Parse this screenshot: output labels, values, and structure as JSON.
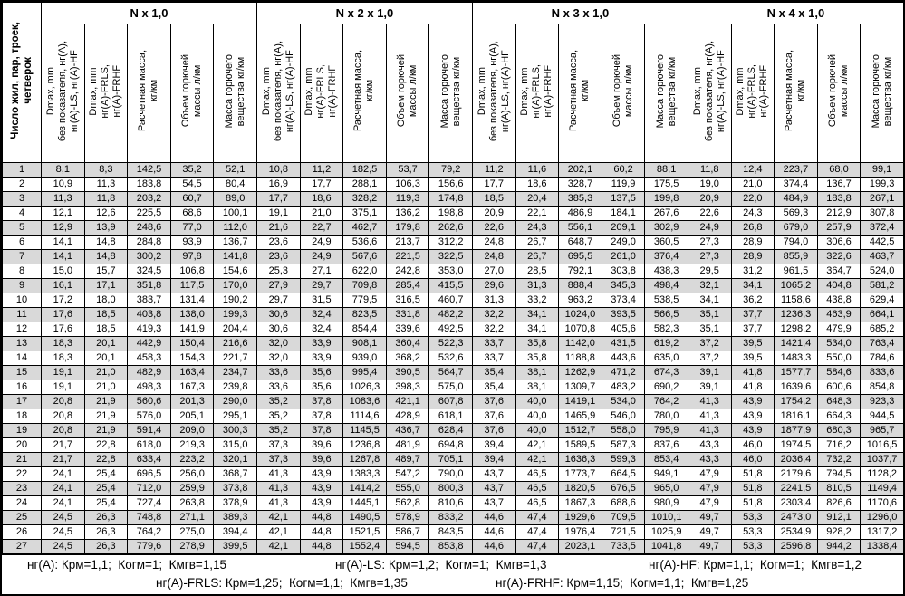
{
  "table": {
    "row_count_label": "Число жил, пар, троек,\nчетверок",
    "groups": [
      "N x 1,0",
      "N x 2 x 1,0",
      "N x 3 x 1,0",
      "N x 4 x 1,0"
    ],
    "column_labels": [
      "Dmax, mm\nбез показателя, нг(А),\nнг(А)-LS, нг(А)-HF",
      "Dmax, mm\nнг(А)-FRLS,\nнг(А)-FRHF",
      "Расчетная масса,\nкг/км",
      "Объем горючей\nмассы л/км",
      "Масса горючего\nвещества кг/км"
    ],
    "rows": [
      {
        "n": "1",
        "v": [
          "8,1",
          "8,3",
          "142,5",
          "35,2",
          "52,1",
          "10,8",
          "11,2",
          "182,5",
          "53,7",
          "79,2",
          "11,2",
          "11,6",
          "202,1",
          "60,2",
          "88,1",
          "11,8",
          "12,4",
          "223,7",
          "68,0",
          "99,1"
        ]
      },
      {
        "n": "2",
        "v": [
          "10,9",
          "11,3",
          "183,8",
          "54,5",
          "80,4",
          "16,9",
          "17,7",
          "288,1",
          "106,3",
          "156,6",
          "17,7",
          "18,6",
          "328,7",
          "119,9",
          "175,5",
          "19,0",
          "21,0",
          "374,4",
          "136,7",
          "199,3"
        ]
      },
      {
        "n": "3",
        "v": [
          "11,3",
          "11,8",
          "203,2",
          "60,7",
          "89,0",
          "17,7",
          "18,6",
          "328,2",
          "119,3",
          "174,8",
          "18,5",
          "20,4",
          "385,3",
          "137,5",
          "199,8",
          "20,9",
          "22,0",
          "484,9",
          "183,8",
          "267,1"
        ]
      },
      {
        "n": "4",
        "v": [
          "12,1",
          "12,6",
          "225,5",
          "68,6",
          "100,1",
          "19,1",
          "21,0",
          "375,1",
          "136,2",
          "198,8",
          "20,9",
          "22,1",
          "486,9",
          "184,1",
          "267,6",
          "22,6",
          "24,3",
          "569,3",
          "212,9",
          "307,8"
        ]
      },
      {
        "n": "5",
        "v": [
          "12,9",
          "13,9",
          "248,6",
          "77,0",
          "112,0",
          "21,6",
          "22,7",
          "462,7",
          "179,8",
          "262,6",
          "22,6",
          "24,3",
          "556,1",
          "209,1",
          "302,9",
          "24,9",
          "26,8",
          "679,0",
          "257,9",
          "372,4"
        ]
      },
      {
        "n": "6",
        "v": [
          "14,1",
          "14,8",
          "284,8",
          "93,9",
          "136,7",
          "23,6",
          "24,9",
          "536,6",
          "213,7",
          "312,2",
          "24,8",
          "26,7",
          "648,7",
          "249,0",
          "360,5",
          "27,3",
          "28,9",
          "794,0",
          "306,6",
          "442,5"
        ]
      },
      {
        "n": "7",
        "v": [
          "14,1",
          "14,8",
          "300,2",
          "97,8",
          "141,8",
          "23,6",
          "24,9",
          "567,6",
          "221,5",
          "322,5",
          "24,8",
          "26,7",
          "695,5",
          "261,0",
          "376,4",
          "27,3",
          "28,9",
          "855,9",
          "322,6",
          "463,7"
        ]
      },
      {
        "n": "8",
        "v": [
          "15,0",
          "15,7",
          "324,5",
          "106,8",
          "154,6",
          "25,3",
          "27,1",
          "622,0",
          "242,8",
          "353,0",
          "27,0",
          "28,5",
          "792,1",
          "303,8",
          "438,3",
          "29,5",
          "31,2",
          "961,5",
          "364,7",
          "524,0"
        ]
      },
      {
        "n": "9",
        "v": [
          "16,1",
          "17,1",
          "351,8",
          "117,5",
          "170,0",
          "27,9",
          "29,7",
          "709,8",
          "285,4",
          "415,5",
          "29,6",
          "31,3",
          "888,4",
          "345,3",
          "498,4",
          "32,1",
          "34,1",
          "1065,2",
          "404,8",
          "581,2"
        ]
      },
      {
        "n": "10",
        "v": [
          "17,2",
          "18,0",
          "383,7",
          "131,4",
          "190,2",
          "29,7",
          "31,5",
          "779,5",
          "316,5",
          "460,7",
          "31,3",
          "33,2",
          "963,2",
          "373,4",
          "538,5",
          "34,1",
          "36,2",
          "1158,6",
          "438,8",
          "629,4"
        ]
      },
      {
        "n": "11",
        "v": [
          "17,6",
          "18,5",
          "403,8",
          "138,0",
          "199,3",
          "30,6",
          "32,4",
          "823,5",
          "331,8",
          "482,2",
          "32,2",
          "34,1",
          "1024,0",
          "393,5",
          "566,5",
          "35,1",
          "37,7",
          "1236,3",
          "463,9",
          "664,1"
        ]
      },
      {
        "n": "12",
        "v": [
          "17,6",
          "18,5",
          "419,3",
          "141,9",
          "204,4",
          "30,6",
          "32,4",
          "854,4",
          "339,6",
          "492,5",
          "32,2",
          "34,1",
          "1070,8",
          "405,6",
          "582,3",
          "35,1",
          "37,7",
          "1298,2",
          "479,9",
          "685,2"
        ]
      },
      {
        "n": "13",
        "v": [
          "18,3",
          "20,1",
          "442,9",
          "150,4",
          "216,6",
          "32,0",
          "33,9",
          "908,1",
          "360,4",
          "522,3",
          "33,7",
          "35,8",
          "1142,0",
          "431,5",
          "619,2",
          "37,2",
          "39,5",
          "1421,4",
          "534,0",
          "763,4"
        ]
      },
      {
        "n": "14",
        "v": [
          "18,3",
          "20,1",
          "458,3",
          "154,3",
          "221,7",
          "32,0",
          "33,9",
          "939,0",
          "368,2",
          "532,6",
          "33,7",
          "35,8",
          "1188,8",
          "443,6",
          "635,0",
          "37,2",
          "39,5",
          "1483,3",
          "550,0",
          "784,6"
        ]
      },
      {
        "n": "15",
        "v": [
          "19,1",
          "21,0",
          "482,9",
          "163,4",
          "234,7",
          "33,6",
          "35,6",
          "995,4",
          "390,5",
          "564,7",
          "35,4",
          "38,1",
          "1262,9",
          "471,2",
          "674,3",
          "39,1",
          "41,8",
          "1577,7",
          "584,6",
          "833,6"
        ]
      },
      {
        "n": "16",
        "v": [
          "19,1",
          "21,0",
          "498,3",
          "167,3",
          "239,8",
          "33,6",
          "35,6",
          "1026,3",
          "398,3",
          "575,0",
          "35,4",
          "38,1",
          "1309,7",
          "483,2",
          "690,2",
          "39,1",
          "41,8",
          "1639,6",
          "600,6",
          "854,8"
        ]
      },
      {
        "n": "17",
        "v": [
          "20,8",
          "21,9",
          "560,6",
          "201,3",
          "290,0",
          "35,2",
          "37,8",
          "1083,6",
          "421,1",
          "607,8",
          "37,6",
          "40,0",
          "1419,1",
          "534,0",
          "764,2",
          "41,3",
          "43,9",
          "1754,2",
          "648,3",
          "923,3"
        ]
      },
      {
        "n": "18",
        "v": [
          "20,8",
          "21,9",
          "576,0",
          "205,1",
          "295,1",
          "35,2",
          "37,8",
          "1114,6",
          "428,9",
          "618,1",
          "37,6",
          "40,0",
          "1465,9",
          "546,0",
          "780,0",
          "41,3",
          "43,9",
          "1816,1",
          "664,3",
          "944,5"
        ]
      },
      {
        "n": "19",
        "v": [
          "20,8",
          "21,9",
          "591,4",
          "209,0",
          "300,3",
          "35,2",
          "37,8",
          "1145,5",
          "436,7",
          "628,4",
          "37,6",
          "40,0",
          "1512,7",
          "558,0",
          "795,9",
          "41,3",
          "43,9",
          "1877,9",
          "680,3",
          "965,7"
        ]
      },
      {
        "n": "20",
        "v": [
          "21,7",
          "22,8",
          "618,0",
          "219,3",
          "315,0",
          "37,3",
          "39,6",
          "1236,8",
          "481,9",
          "694,8",
          "39,4",
          "42,1",
          "1589,5",
          "587,3",
          "837,6",
          "43,3",
          "46,0",
          "1974,5",
          "716,2",
          "1016,5"
        ]
      },
      {
        "n": "21",
        "v": [
          "21,7",
          "22,8",
          "633,4",
          "223,2",
          "320,1",
          "37,3",
          "39,6",
          "1267,8",
          "489,7",
          "705,1",
          "39,4",
          "42,1",
          "1636,3",
          "599,3",
          "853,4",
          "43,3",
          "46,0",
          "2036,4",
          "732,2",
          "1037,7"
        ]
      },
      {
        "n": "22",
        "v": [
          "24,1",
          "25,4",
          "696,5",
          "256,0",
          "368,7",
          "41,3",
          "43,9",
          "1383,3",
          "547,2",
          "790,0",
          "43,7",
          "46,5",
          "1773,7",
          "664,5",
          "949,1",
          "47,9",
          "51,8",
          "2179,6",
          "794,5",
          "1128,2"
        ]
      },
      {
        "n": "23",
        "v": [
          "24,1",
          "25,4",
          "712,0",
          "259,9",
          "373,8",
          "41,3",
          "43,9",
          "1414,2",
          "555,0",
          "800,3",
          "43,7",
          "46,5",
          "1820,5",
          "676,5",
          "965,0",
          "47,9",
          "51,8",
          "2241,5",
          "810,5",
          "1149,4"
        ]
      },
      {
        "n": "24",
        "v": [
          "24,1",
          "25,4",
          "727,4",
          "263,8",
          "378,9",
          "41,3",
          "43,9",
          "1445,1",
          "562,8",
          "810,6",
          "43,7",
          "46,5",
          "1867,3",
          "688,6",
          "980,9",
          "47,9",
          "51,8",
          "2303,4",
          "826,6",
          "1170,6"
        ]
      },
      {
        "n": "25",
        "v": [
          "24,5",
          "26,3",
          "748,8",
          "271,1",
          "389,3",
          "42,1",
          "44,8",
          "1490,5",
          "578,9",
          "833,2",
          "44,6",
          "47,4",
          "1929,6",
          "709,5",
          "1010,1",
          "49,7",
          "53,3",
          "2473,0",
          "912,1",
          "1296,0"
        ]
      },
      {
        "n": "26",
        "v": [
          "24,5",
          "26,3",
          "764,2",
          "275,0",
          "394,4",
          "42,1",
          "44,8",
          "1521,5",
          "586,7",
          "843,5",
          "44,6",
          "47,4",
          "1976,4",
          "721,5",
          "1025,9",
          "49,7",
          "53,3",
          "2534,9",
          "928,2",
          "1317,2"
        ]
      },
      {
        "n": "27",
        "v": [
          "24,5",
          "26,3",
          "779,6",
          "278,9",
          "399,5",
          "42,1",
          "44,8",
          "1552,4",
          "594,5",
          "853,8",
          "44,6",
          "47,4",
          "2023,1",
          "733,5",
          "1041,8",
          "49,7",
          "53,3",
          "2596,8",
          "944,2",
          "1338,4"
        ]
      }
    ]
  },
  "footnotes": {
    "line1": [
      "нг(А): Крм=1,1;  Когм=1;  Кмгв=1,15",
      "нг(А)-LS: Крм=1,2;  Когм=1;  Кмгв=1,3",
      "нг(А)-HF: Крм=1,1;  Когм=1;  Кмгв=1,2"
    ],
    "line2": [
      "нг(А)-FRLS: Крм=1,25;  Когм=1,1;  Кмгв=1,35",
      "нг(А)-FRHF: Крм=1,15;  Когм=1,1;  Кмгв=1,25"
    ]
  },
  "colors": {
    "zebra_row": "#d9d9d9",
    "border": "#000000",
    "background": "#ffffff"
  }
}
